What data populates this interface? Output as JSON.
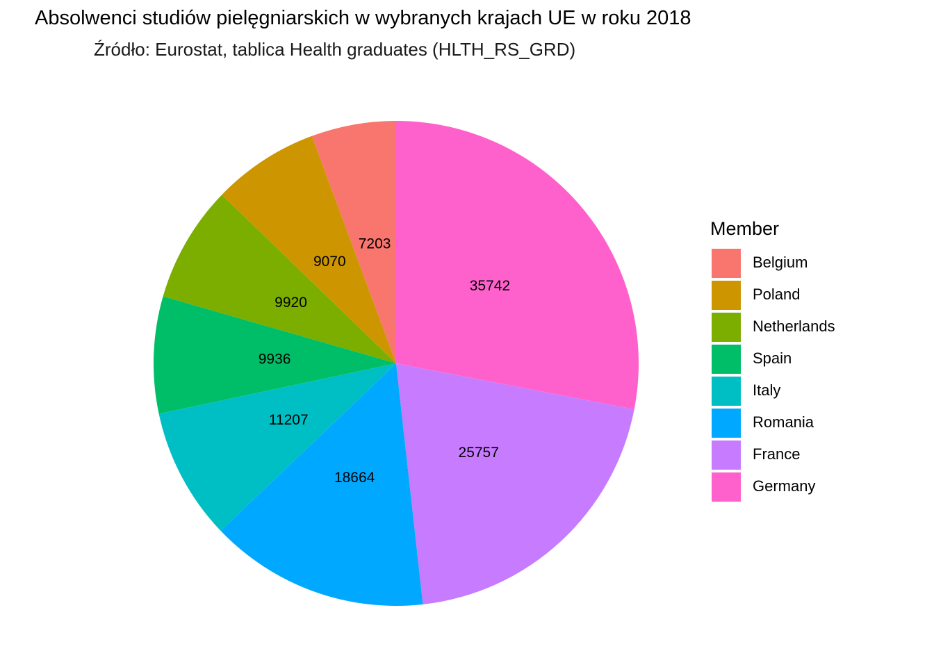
{
  "chart_data": {
    "type": "pie",
    "title": "Absolwenci studiów pielęgniarskich w wybranych krajach UE w roku 2018",
    "subtitle": "Źródło: Eurostat, tablica Health graduates (HLTH_RS_GRD)",
    "legend_title": "Member",
    "legend_position": "right",
    "direction": "counterclockwise",
    "start": "top",
    "slices": [
      {
        "label": "Belgium",
        "value": 7203,
        "color": "#F8766D"
      },
      {
        "label": "Poland",
        "value": 9070,
        "color": "#CD9600"
      },
      {
        "label": "Netherlands",
        "value": 9920,
        "color": "#7CAE00"
      },
      {
        "label": "Spain",
        "value": 9936,
        "color": "#00BE67"
      },
      {
        "label": "Italy",
        "value": 11207,
        "color": "#00BFC4"
      },
      {
        "label": "Romania",
        "value": 18664,
        "color": "#00A9FF"
      },
      {
        "label": "France",
        "value": 25757,
        "color": "#C77CFF"
      },
      {
        "label": "Germany",
        "value": 35742,
        "color": "#FF61CC"
      }
    ]
  }
}
